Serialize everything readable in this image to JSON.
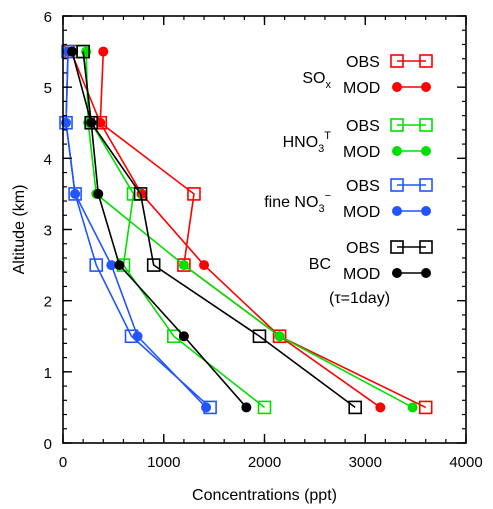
{
  "chart_data": {
    "type": "line",
    "xlabel": "Concentrations (ppt)",
    "ylabel": "Altitude (km)",
    "xlim": [
      0,
      4000
    ],
    "ylim": [
      0,
      6
    ],
    "xticks": [
      "0",
      "1000",
      "2000",
      "3000",
      "4000"
    ],
    "yticks": [
      "0",
      "1",
      "2",
      "3",
      "4",
      "5",
      "6"
    ],
    "grid": false,
    "legend_position": "right",
    "altitudes": [
      0.5,
      1.5,
      2.5,
      3.5,
      4.5,
      5.5
    ],
    "groups": [
      {
        "name_main": "SO",
        "name_sup": "",
        "name_sub": "x",
        "name_tail": "",
        "color": "#ff0000",
        "obs": [
          3600,
          2150,
          1200,
          1300,
          370,
          80
        ],
        "mod": [
          3150,
          2150,
          1400,
          780,
          370,
          400
        ]
      },
      {
        "name_main": "HNO",
        "name_sub": "3",
        "name_sup": "T",
        "name_tail": "",
        "color": "#00e000",
        "obs": [
          2000,
          1100,
          600,
          700,
          280,
          200
        ],
        "mod": [
          3470,
          2150,
          1200,
          330,
          250,
          230
        ]
      },
      {
        "name_main": "fine NO",
        "name_sub": "3",
        "name_sup": "−",
        "name_tail": "",
        "color": "#2255ff",
        "obs": [
          1460,
          680,
          330,
          120,
          30,
          50
        ],
        "mod": [
          1420,
          740,
          480,
          120,
          30,
          50
        ]
      },
      {
        "name_main": "BC",
        "name_sub": "",
        "name_sup": "",
        "name_tail": "",
        "color": "#000000",
        "obs": [
          2900,
          1950,
          900,
          770,
          280,
          200
        ],
        "mod": [
          1820,
          1200,
          560,
          350,
          280,
          90
        ]
      }
    ],
    "legend_obs_label": "OBS",
    "legend_mod_label": "MOD",
    "legend_note": "(τ=1day)"
  }
}
